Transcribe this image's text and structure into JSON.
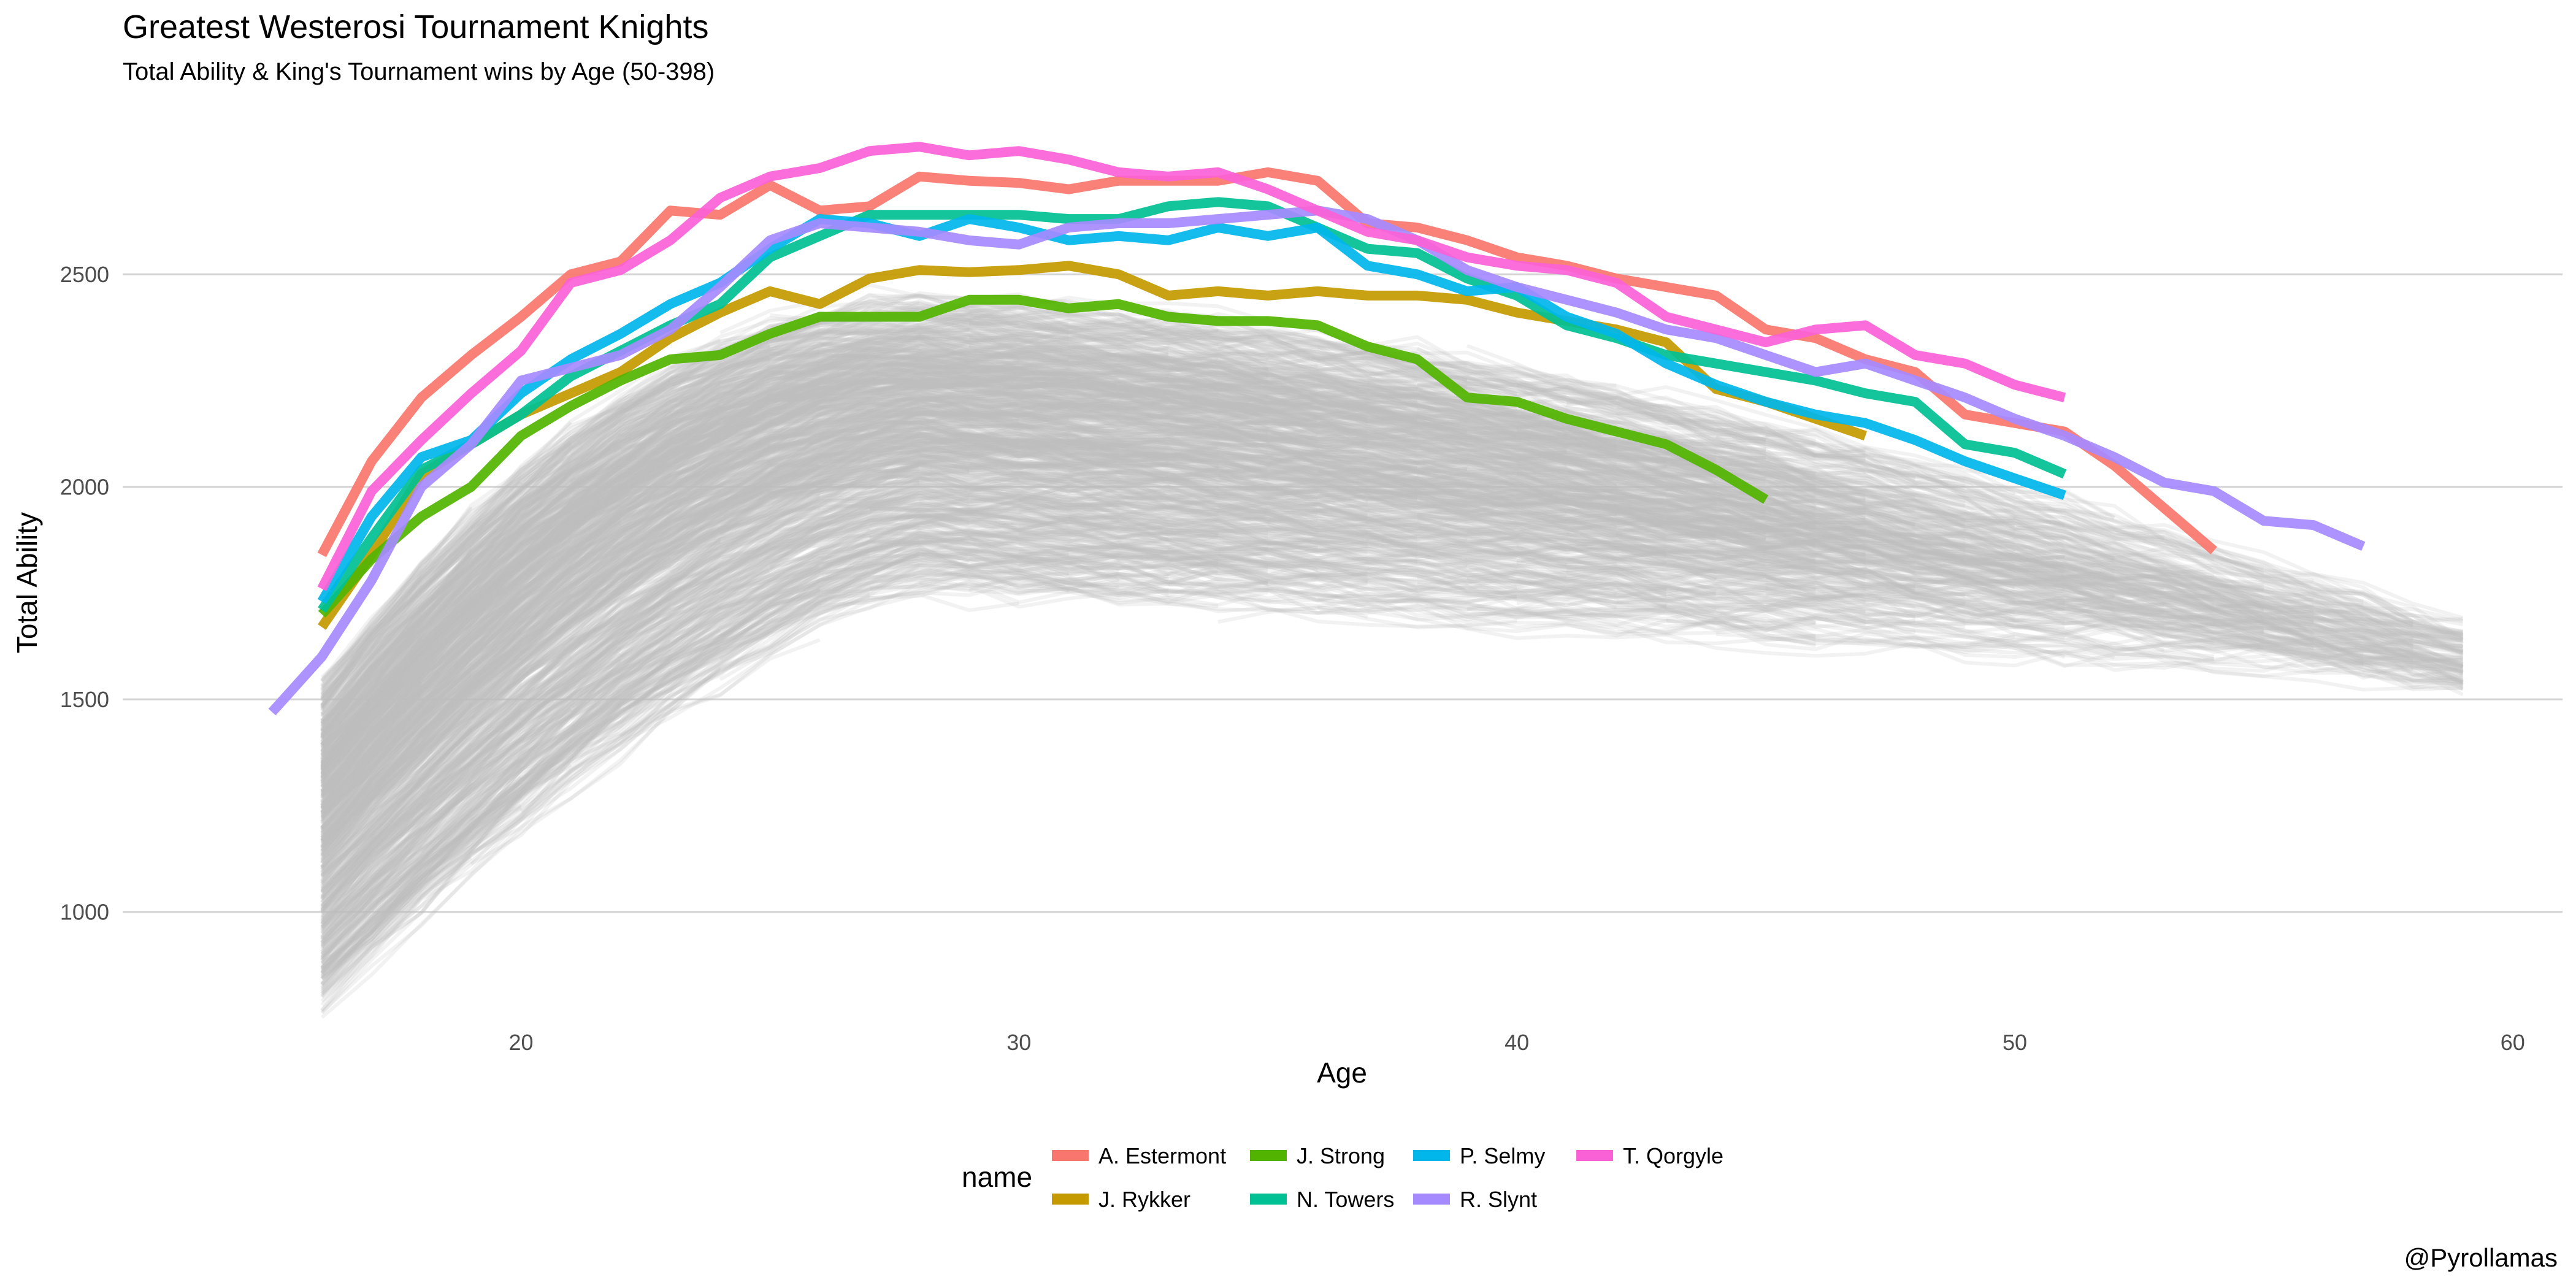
{
  "chart_data": {
    "type": "line",
    "title": "Greatest Westerosi Tournament Knights",
    "subtitle": "Total Ability & King's Tournament wins by Age (50-398)",
    "xlabel": "Age",
    "ylabel": "Total Ability",
    "caption": "@Pyrollamas",
    "xlim": [
      12,
      61
    ],
    "ylim": [
      750,
      2900
    ],
    "xticks": [
      20,
      30,
      40,
      50,
      60
    ],
    "yticks": [
      1000,
      1500,
      2000,
      2500
    ],
    "grid": "horizontal",
    "legend": {
      "title": "name",
      "position": "bottom",
      "columns": 4
    },
    "background_series": {
      "color": "#bebebe",
      "description_count": 0
    },
    "series": [
      {
        "name": "A. Estermont",
        "color": "#F8766D",
        "x": [
          16,
          17,
          18,
          19,
          20,
          21,
          22,
          23,
          24,
          25,
          26,
          27,
          28,
          29,
          30,
          31,
          32,
          33,
          34,
          35,
          36,
          37,
          38,
          39,
          40,
          41,
          42,
          43,
          44,
          45,
          46,
          47,
          48,
          49,
          50,
          51,
          52,
          53,
          54
        ],
        "y": [
          1840,
          2060,
          2210,
          2310,
          2400,
          2500,
          2530,
          2650,
          2640,
          2710,
          2650,
          2660,
          2730,
          2720,
          2715,
          2700,
          2720,
          2720,
          2720,
          2740,
          2720,
          2620,
          2610,
          2580,
          2540,
          2520,
          2490,
          2470,
          2450,
          2370,
          2350,
          2300,
          2270,
          2170,
          2150,
          2130,
          2050,
          1950,
          1850
        ]
      },
      {
        "name": "J. Rykker",
        "color": "#C49A00",
        "x": [
          16,
          17,
          18,
          19,
          20,
          21,
          22,
          23,
          24,
          25,
          26,
          27,
          28,
          29,
          30,
          31,
          32,
          33,
          34,
          35,
          36,
          37,
          38,
          39,
          40,
          41,
          42,
          43,
          44,
          45,
          46,
          47
        ],
        "y": [
          1670,
          1840,
          2030,
          2100,
          2170,
          2220,
          2270,
          2350,
          2410,
          2460,
          2430,
          2490,
          2510,
          2505,
          2510,
          2520,
          2500,
          2450,
          2460,
          2450,
          2460,
          2450,
          2450,
          2440,
          2410,
          2390,
          2370,
          2340,
          2230,
          2200,
          2160,
          2120
        ]
      },
      {
        "name": "J. Strong",
        "color": "#53B400",
        "x": [
          16,
          17,
          18,
          19,
          20,
          21,
          22,
          23,
          24,
          25,
          26,
          27,
          28,
          29,
          30,
          31,
          32,
          33,
          34,
          35,
          36,
          37,
          38,
          39,
          40,
          41,
          42,
          43,
          44,
          45
        ],
        "y": [
          1700,
          1830,
          1930,
          2000,
          2120,
          2190,
          2250,
          2300,
          2310,
          2360,
          2400,
          2400,
          2400,
          2440,
          2440,
          2420,
          2430,
          2400,
          2390,
          2390,
          2380,
          2330,
          2300,
          2210,
          2200,
          2160,
          2130,
          2100,
          2040,
          1970
        ]
      },
      {
        "name": "N. Towers",
        "color": "#00C094",
        "x": [
          16,
          17,
          18,
          19,
          20,
          21,
          22,
          23,
          24,
          25,
          26,
          27,
          28,
          29,
          30,
          31,
          32,
          33,
          34,
          35,
          36,
          37,
          38,
          39,
          40,
          41,
          42,
          43,
          44,
          45,
          46,
          47,
          48,
          49,
          50,
          51
        ],
        "y": [
          1710,
          1880,
          2040,
          2100,
          2170,
          2260,
          2320,
          2380,
          2430,
          2540,
          2590,
          2640,
          2640,
          2640,
          2640,
          2630,
          2630,
          2660,
          2670,
          2660,
          2610,
          2560,
          2550,
          2490,
          2450,
          2380,
          2350,
          2310,
          2290,
          2270,
          2250,
          2220,
          2200,
          2100,
          2080,
          2030
        ]
      },
      {
        "name": "P. Selmy",
        "color": "#00B6EB",
        "x": [
          16,
          17,
          18,
          19,
          20,
          21,
          22,
          23,
          24,
          25,
          26,
          27,
          28,
          29,
          30,
          31,
          32,
          33,
          34,
          35,
          36,
          37,
          38,
          39,
          40,
          41,
          42,
          43,
          44,
          45,
          46,
          47,
          48,
          49,
          50,
          51
        ],
        "y": [
          1730,
          1930,
          2070,
          2110,
          2220,
          2300,
          2360,
          2430,
          2480,
          2560,
          2630,
          2620,
          2590,
          2630,
          2610,
          2580,
          2590,
          2580,
          2610,
          2590,
          2610,
          2520,
          2500,
          2460,
          2470,
          2400,
          2360,
          2290,
          2240,
          2200,
          2170,
          2150,
          2110,
          2060,
          2020,
          1980
        ]
      },
      {
        "name": "R. Slynt",
        "color": "#A58AFF",
        "x": [
          15,
          16,
          17,
          18,
          19,
          20,
          21,
          22,
          23,
          24,
          25,
          26,
          27,
          28,
          29,
          30,
          31,
          32,
          33,
          34,
          35,
          36,
          37,
          38,
          39,
          40,
          41,
          42,
          43,
          44,
          45,
          46,
          47,
          48,
          49,
          50,
          51,
          52,
          53,
          54,
          55,
          56,
          57
        ],
        "y": [
          1470,
          1600,
          1780,
          2000,
          2100,
          2250,
          2280,
          2310,
          2370,
          2470,
          2580,
          2620,
          2610,
          2600,
          2580,
          2570,
          2610,
          2620,
          2620,
          2630,
          2640,
          2650,
          2630,
          2580,
          2510,
          2470,
          2440,
          2410,
          2370,
          2350,
          2310,
          2270,
          2290,
          2250,
          2210,
          2160,
          2120,
          2070,
          2010,
          1990,
          1920,
          1910,
          1860
        ]
      },
      {
        "name": "T. Qorgyle",
        "color": "#FB61D7",
        "x": [
          16,
          17,
          18,
          19,
          20,
          21,
          22,
          23,
          24,
          25,
          26,
          27,
          28,
          29,
          30,
          31,
          32,
          33,
          34,
          35,
          36,
          37,
          38,
          39,
          40,
          41,
          42,
          43,
          44,
          45,
          46,
          47,
          48,
          49,
          50,
          51
        ],
        "y": [
          1760,
          1990,
          2110,
          2220,
          2320,
          2480,
          2510,
          2580,
          2680,
          2730,
          2750,
          2790,
          2800,
          2780,
          2790,
          2770,
          2740,
          2730,
          2740,
          2700,
          2650,
          2600,
          2580,
          2540,
          2520,
          2510,
          2480,
          2400,
          2370,
          2340,
          2370,
          2380,
          2310,
          2290,
          2240,
          2210
        ]
      }
    ]
  }
}
